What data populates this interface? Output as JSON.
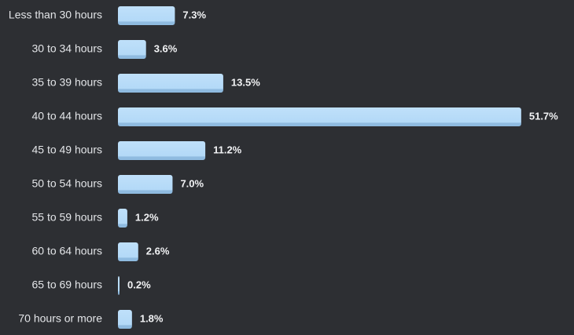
{
  "chart_data": {
    "type": "bar",
    "orientation": "horizontal",
    "color": "#b3d9f7",
    "categories": [
      "Less than 30 hours",
      "30 to 34 hours",
      "35 to 39 hours",
      "40 to 44 hours",
      "45 to 49 hours",
      "50 to 54 hours",
      "55 to 59 hours",
      "60 to 64 hours",
      "65 to 69 hours",
      "70 hours or more"
    ],
    "values": [
      7.3,
      3.6,
      13.5,
      51.7,
      11.2,
      7.0,
      1.2,
      2.6,
      0.2,
      1.8
    ],
    "value_labels": [
      "7.3%",
      "3.6%",
      "13.5%",
      "51.7%",
      "11.2%",
      "7.0%",
      "1.2%",
      "2.6%",
      "0.2%",
      "1.8%"
    ]
  }
}
